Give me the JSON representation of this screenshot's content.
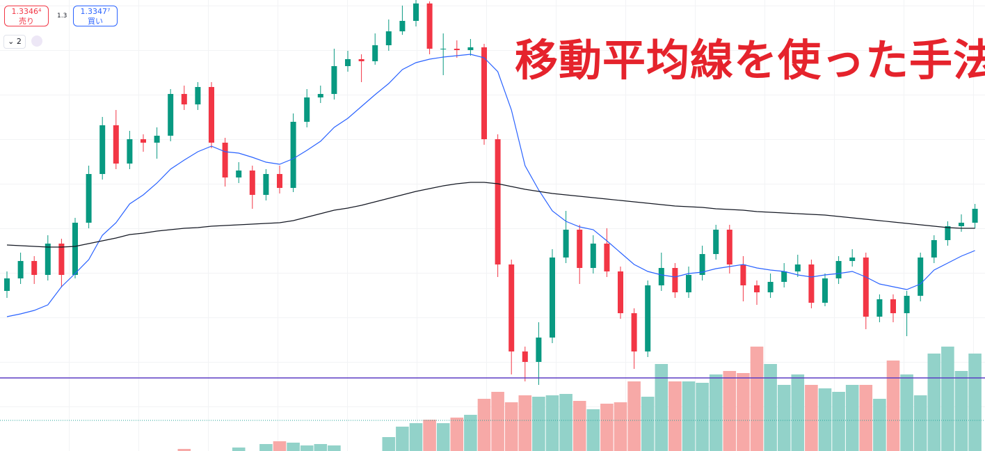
{
  "chart_data": {
    "type": "candlestick",
    "title": "移動平均線を使った手法",
    "ylim": [
      0,
      648
    ],
    "y2lim": [
      0,
      648
    ],
    "up_color": "#089981",
    "down_color": "#f23645",
    "volume_up_color": "#92d2c9",
    "volume_down_color": "#f7a9a7",
    "open": [
      230,
      248,
      273,
      253,
      298,
      253,
      328,
      398,
      468,
      413,
      448,
      443,
      453,
      513,
      498,
      523,
      443,
      393,
      403,
      368,
      398,
      378,
      473,
      508,
      513,
      553,
      563,
      560,
      583,
      603,
      618,
      643,
      578,
      578,
      576,
      580,
      448,
      268,
      143,
      128,
      163,
      278,
      318,
      263,
      298,
      258,
      198,
      143,
      238,
      263,
      228,
      253,
      283,
      318,
      268,
      238,
      228,
      243,
      258,
      268,
      213,
      248,
      273,
      278,
      193,
      218,
      198,
      223,
      278,
      303,
      323,
      328
    ],
    "high": [
      258,
      285,
      280,
      310,
      305,
      335,
      410,
      480,
      490,
      460,
      455,
      465,
      520,
      525,
      530,
      530,
      450,
      415,
      410,
      405,
      410,
      485,
      520,
      525,
      578,
      575,
      570,
      600,
      620,
      640,
      648,
      646,
      600,
      590,
      592,
      585,
      455,
      275,
      150,
      185,
      290,
      345,
      325,
      310,
      320,
      265,
      205,
      245,
      285,
      270,
      265,
      295,
      325,
      325,
      280,
      245,
      255,
      270,
      282,
      275,
      255,
      280,
      290,
      285,
      225,
      225,
      230,
      285,
      310,
      330,
      340,
      355
    ],
    "low": [
      220,
      240,
      240,
      245,
      235,
      248,
      320,
      390,
      405,
      405,
      430,
      420,
      445,
      490,
      490,
      435,
      380,
      385,
      348,
      360,
      370,
      372,
      465,
      500,
      505,
      545,
      530,
      555,
      575,
      598,
      610,
      570,
      540,
      565,
      568,
      440,
      250,
      110,
      100,
      95,
      155,
      270,
      240,
      255,
      250,
      190,
      118,
      135,
      230,
      220,
      220,
      245,
      275,
      255,
      215,
      210,
      220,
      235,
      250,
      205,
      208,
      240,
      265,
      175,
      185,
      185,
      165,
      215,
      270,
      295,
      315,
      320
    ],
    "close": [
      248,
      273,
      253,
      298,
      253,
      328,
      398,
      468,
      413,
      448,
      443,
      453,
      513,
      498,
      523,
      443,
      393,
      403,
      368,
      398,
      378,
      473,
      508,
      513,
      553,
      563,
      560,
      583,
      603,
      618,
      643,
      578,
      578,
      576,
      580,
      448,
      268,
      143,
      128,
      163,
      278,
      318,
      263,
      298,
      258,
      198,
      143,
      238,
      263,
      228,
      253,
      283,
      318,
      268,
      238,
      228,
      243,
      258,
      268,
      213,
      248,
      273,
      278,
      193,
      218,
      198,
      223,
      278,
      303,
      323,
      328,
      348
    ],
    "volume": [
      0,
      0,
      0,
      0,
      0,
      0,
      0,
      0,
      0,
      0,
      0,
      0,
      0,
      3,
      0,
      0,
      0,
      5,
      0,
      10,
      14,
      12,
      8,
      10,
      8,
      0,
      0,
      0,
      20,
      35,
      40,
      45,
      40,
      48,
      52,
      75,
      85,
      70,
      80,
      78,
      80,
      82,
      72,
      60,
      68,
      70,
      100,
      78,
      125,
      100,
      100,
      98,
      110,
      115,
      112,
      150,
      125,
      95,
      110,
      95,
      90,
      85,
      95,
      95,
      75,
      130,
      110,
      80,
      140,
      150,
      115,
      140
    ],
    "ma_lines": [
      {
        "color": "#2962ff",
        "values": [
          193,
          197,
          202,
          210,
          236,
          255,
          275,
          310,
          328,
          355,
          368,
          385,
          405,
          418,
          430,
          438,
          430,
          428,
          422,
          415,
          412,
          420,
          432,
          445,
          465,
          478,
          495,
          512,
          528,
          548,
          558,
          563,
          566,
          568,
          570,
          565,
          545,
          490,
          410,
          375,
          345,
          330,
          322,
          318,
          302,
          285,
          268,
          258,
          253,
          250,
          255,
          257,
          262,
          265,
          268,
          263,
          260,
          258,
          253,
          250,
          253,
          255,
          258,
          250,
          240,
          236,
          232,
          240,
          260,
          270,
          280,
          288
        ]
      },
      {
        "color": "#131722",
        "values": [
          296,
          295,
          294,
          293,
          293,
          294,
          298,
          302,
          306,
          311,
          313,
          316,
          318,
          320,
          321,
          323,
          324,
          325,
          326,
          327,
          328,
          331,
          336,
          341,
          346,
          349,
          353,
          358,
          363,
          368,
          373,
          377,
          381,
          384,
          386,
          386,
          384,
          380,
          376,
          373,
          370,
          368,
          366,
          364,
          362,
          360,
          358,
          356,
          354,
          352,
          351,
          350,
          348,
          347,
          346,
          344,
          343,
          342,
          341,
          340,
          339,
          337,
          335,
          333,
          331,
          329,
          327,
          325,
          323,
          321,
          320,
          320
        ]
      }
    ],
    "price_line": {
      "value": 105,
      "color": "#5b3cc4"
    },
    "volume_line": {
      "value": 44,
      "color": "#26a69a"
    },
    "sell": {
      "price": "1.3346⁴",
      "label": "売り"
    },
    "buy": {
      "price": "1.3347⁷",
      "label": "買い"
    },
    "spread": "1.3",
    "quantity": "2"
  }
}
